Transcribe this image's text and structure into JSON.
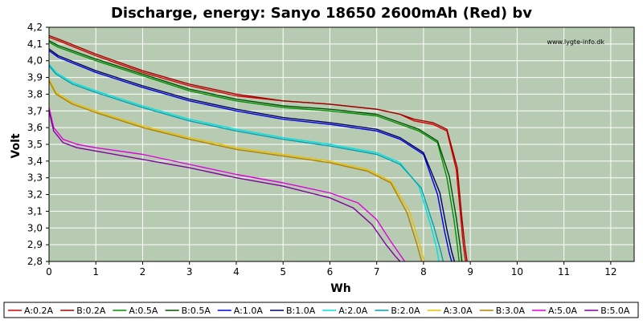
{
  "chart_data": {
    "type": "line",
    "title": "Discharge, energy: Sanyo 18650 2600mAh (Red) bv",
    "watermark": "www.lygte-info.dk",
    "xlabel": "Wh",
    "ylabel": "Volt",
    "xlim": [
      0,
      12.5
    ],
    "ylim": [
      2.8,
      4.2
    ],
    "x_ticks": [
      "0",
      "1",
      "2",
      "3",
      "4",
      "5",
      "6",
      "7",
      "8",
      "9",
      "10",
      "11",
      "12"
    ],
    "y_ticks": [
      "2,8",
      "2,9",
      "3,0",
      "3,1",
      "3,2",
      "3,3",
      "3,4",
      "3,5",
      "3,6",
      "3,7",
      "3,8",
      "3,9",
      "4,0",
      "4,1",
      "4,2"
    ],
    "grid": true,
    "legend_position": "bottom",
    "colors": {
      "plot_background": "#b7cbb2",
      "grid": "#ffffff",
      "axis": "#000000"
    },
    "series": [
      {
        "name": "A:0.2A",
        "color": "#d40000",
        "x": [
          0,
          0.2,
          1,
          2,
          3,
          4,
          5,
          6,
          7,
          7.5,
          7.8,
          8.2,
          8.5,
          8.7,
          8.8,
          8.85,
          8.9
        ],
        "y": [
          4.14,
          4.12,
          4.03,
          3.93,
          3.85,
          3.79,
          3.76,
          3.74,
          3.71,
          3.68,
          3.64,
          3.62,
          3.58,
          3.35,
          3.05,
          2.9,
          2.8
        ]
      },
      {
        "name": "B:0.2A",
        "color": "#a00000",
        "x": [
          0,
          0.2,
          1,
          2,
          3,
          4,
          5,
          6,
          7,
          7.5,
          7.8,
          8.2,
          8.5,
          8.72,
          8.82,
          8.88,
          8.93
        ],
        "y": [
          4.15,
          4.13,
          4.04,
          3.94,
          3.86,
          3.8,
          3.76,
          3.74,
          3.71,
          3.68,
          3.65,
          3.63,
          3.59,
          3.36,
          3.06,
          2.9,
          2.8
        ]
      },
      {
        "name": "A:0.5A",
        "color": "#009000",
        "x": [
          0,
          0.2,
          1,
          2,
          3,
          4,
          5,
          6,
          7,
          7.5,
          7.9,
          8.3,
          8.5,
          8.65,
          8.72,
          8.76
        ],
        "y": [
          4.11,
          4.08,
          4.0,
          3.91,
          3.82,
          3.76,
          3.72,
          3.7,
          3.67,
          3.62,
          3.58,
          3.51,
          3.3,
          3.05,
          2.9,
          2.8
        ]
      },
      {
        "name": "B:0.5A",
        "color": "#005000",
        "x": [
          0,
          0.2,
          1,
          2,
          3,
          4,
          5,
          6,
          7,
          7.5,
          7.9,
          8.3,
          8.55,
          8.7,
          8.78,
          8.82
        ],
        "y": [
          4.12,
          4.09,
          4.01,
          3.92,
          3.83,
          3.77,
          3.73,
          3.71,
          3.68,
          3.63,
          3.59,
          3.52,
          3.31,
          3.06,
          2.9,
          2.8
        ]
      },
      {
        "name": "A:1.0A",
        "color": "#0000e0",
        "x": [
          0,
          0.2,
          1,
          2,
          3,
          4,
          5,
          6,
          7,
          7.5,
          8.0,
          8.3,
          8.45,
          8.55,
          8.6
        ],
        "y": [
          4.06,
          4.02,
          3.93,
          3.84,
          3.76,
          3.7,
          3.65,
          3.62,
          3.58,
          3.53,
          3.44,
          3.2,
          2.98,
          2.85,
          2.8
        ]
      },
      {
        "name": "B:1.0A",
        "color": "#000060",
        "x": [
          0,
          0.2,
          1,
          2,
          3,
          4,
          5,
          6,
          7,
          7.5,
          8.0,
          8.35,
          8.5,
          8.6,
          8.66
        ],
        "y": [
          4.07,
          4.03,
          3.94,
          3.85,
          3.77,
          3.71,
          3.66,
          3.63,
          3.59,
          3.54,
          3.45,
          3.21,
          2.99,
          2.86,
          2.8
        ]
      },
      {
        "name": "A:2.0A",
        "color": "#00e0e0",
        "x": [
          0,
          0.15,
          0.5,
          1,
          2,
          3,
          4,
          5,
          6,
          7,
          7.5,
          7.9,
          8.15,
          8.28,
          8.33
        ],
        "y": [
          3.98,
          3.93,
          3.87,
          3.82,
          3.73,
          3.65,
          3.59,
          3.54,
          3.5,
          3.45,
          3.39,
          3.25,
          3.02,
          2.88,
          2.8
        ]
      },
      {
        "name": "B:2.0A",
        "color": "#00a0b0",
        "x": [
          0,
          0.15,
          0.5,
          1,
          2,
          3,
          4,
          5,
          6,
          7,
          7.5,
          7.95,
          8.22,
          8.36,
          8.42
        ],
        "y": [
          3.97,
          3.92,
          3.86,
          3.81,
          3.72,
          3.64,
          3.58,
          3.53,
          3.49,
          3.44,
          3.38,
          3.24,
          3.01,
          2.87,
          2.8
        ]
      },
      {
        "name": "A:3.0A",
        "color": "#e8c000",
        "x": [
          0,
          0.15,
          0.5,
          1,
          2,
          3,
          4,
          5,
          6,
          6.8,
          7.3,
          7.7,
          7.92,
          8.02
        ],
        "y": [
          3.89,
          3.81,
          3.75,
          3.7,
          3.61,
          3.54,
          3.48,
          3.44,
          3.4,
          3.35,
          3.28,
          3.1,
          2.9,
          2.8
        ]
      },
      {
        "name": "B:3.0A",
        "color": "#b08000",
        "x": [
          0,
          0.15,
          0.5,
          1,
          2,
          3,
          4,
          5,
          6,
          6.8,
          7.3,
          7.65,
          7.86,
          7.96
        ],
        "y": [
          3.88,
          3.8,
          3.74,
          3.69,
          3.6,
          3.53,
          3.47,
          3.43,
          3.39,
          3.34,
          3.27,
          3.09,
          2.9,
          2.8
        ]
      },
      {
        "name": "A:5.0A",
        "color": "#e000e0",
        "x": [
          0,
          0.1,
          0.3,
          0.6,
          1,
          2,
          3,
          4,
          5,
          6,
          6.6,
          7.0,
          7.3,
          7.5,
          7.6
        ],
        "y": [
          3.72,
          3.6,
          3.53,
          3.5,
          3.48,
          3.44,
          3.38,
          3.32,
          3.27,
          3.21,
          3.15,
          3.05,
          2.92,
          2.84,
          2.8
        ]
      },
      {
        "name": "B:5.0A",
        "color": "#8000a0",
        "x": [
          0,
          0.1,
          0.3,
          0.6,
          1,
          2,
          3,
          4,
          5,
          6,
          6.5,
          6.9,
          7.2,
          7.4,
          7.5
        ],
        "y": [
          3.7,
          3.58,
          3.51,
          3.48,
          3.46,
          3.41,
          3.36,
          3.3,
          3.25,
          3.18,
          3.12,
          3.02,
          2.9,
          2.83,
          2.8
        ]
      }
    ]
  }
}
